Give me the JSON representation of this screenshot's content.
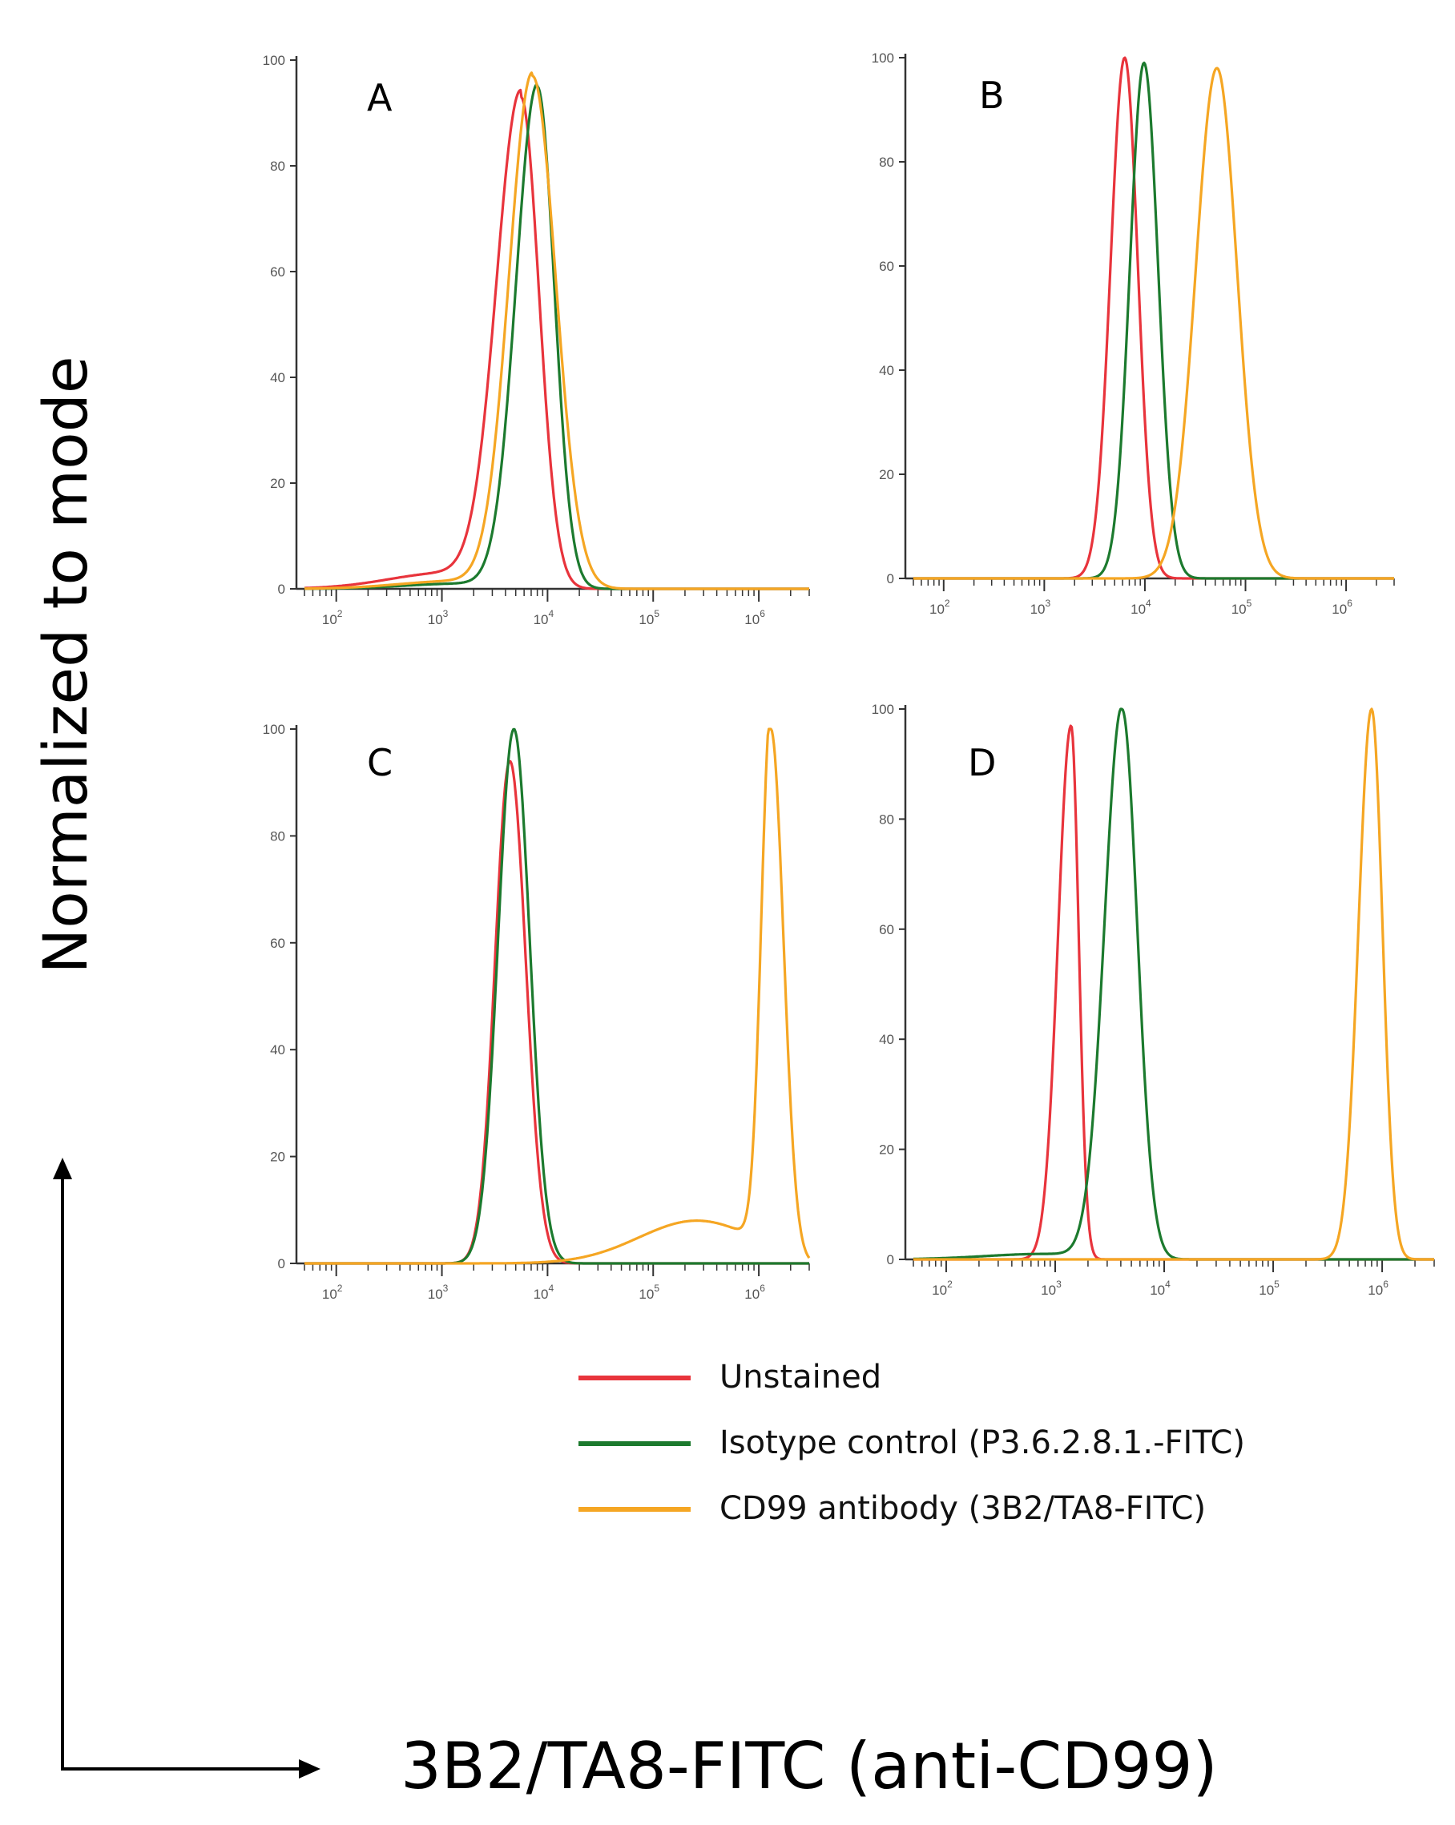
{
  "chart_data": [
    {
      "type": "line",
      "panel": "A",
      "xscale": "log",
      "xlim": [
        50,
        3000000
      ],
      "ylim": [
        0,
        100
      ],
      "yticks": [
        "0",
        "20",
        "40",
        "60",
        "80",
        "100"
      ],
      "xticks": [
        {
          "base": "10",
          "exp": "2"
        },
        {
          "base": "10",
          "exp": "3"
        },
        {
          "base": "10",
          "exp": "4"
        },
        {
          "base": "10",
          "exp": "5"
        },
        {
          "base": "10",
          "exp": "6"
        }
      ],
      "series": [
        {
          "name": "Unstained",
          "peak_x": 5600,
          "peak_y": 93,
          "sigma_left": 0.23,
          "sigma_right": 0.17,
          "shoulder": 3,
          "color": "#e8343c"
        },
        {
          "name": "Isotype control (P3.6.2.8.1.-FITC)",
          "peak_x": 8000,
          "peak_y": 95,
          "sigma_left": 0.2,
          "sigma_right": 0.16,
          "shoulder": 1,
          "color": "#1c7a2e"
        },
        {
          "name": "CD99 antibody (3B2/TA8-FITC)",
          "peak_x": 7200,
          "peak_y": 97,
          "sigma_left": 0.22,
          "sigma_right": 0.22,
          "shoulder": 1.5,
          "color": "#f5a623"
        }
      ]
    },
    {
      "type": "line",
      "panel": "B",
      "xscale": "log",
      "xlim": [
        50,
        3000000
      ],
      "ylim": [
        0,
        100
      ],
      "yticks": [
        "0",
        "20",
        "40",
        "60",
        "80",
        "100"
      ],
      "xticks": [
        {
          "base": "10",
          "exp": "2"
        },
        {
          "base": "10",
          "exp": "3"
        },
        {
          "base": "10",
          "exp": "4"
        },
        {
          "base": "10",
          "exp": "5"
        },
        {
          "base": "10",
          "exp": "6"
        }
      ],
      "series": [
        {
          "name": "Unstained",
          "peak_x": 6300,
          "peak_y": 100,
          "sigma_left": 0.14,
          "sigma_right": 0.13,
          "shoulder": 0,
          "color": "#e8343c"
        },
        {
          "name": "Isotype control (P3.6.2.8.1.-FITC)",
          "peak_x": 9800,
          "peak_y": 99,
          "sigma_left": 0.14,
          "sigma_right": 0.14,
          "shoulder": 0,
          "color": "#1c7a2e"
        },
        {
          "name": "CD99 antibody (3B2/TA8-FITC)",
          "peak_x": 52000,
          "peak_y": 98,
          "sigma_left": 0.21,
          "sigma_right": 0.2,
          "shoulder": 0,
          "color": "#f5a623"
        }
      ]
    },
    {
      "type": "line",
      "panel": "C",
      "xscale": "log",
      "xlim": [
        50,
        3000000
      ],
      "ylim": [
        0,
        100
      ],
      "yticks": [
        "0",
        "20",
        "40",
        "60",
        "80",
        "100"
      ],
      "xticks": [
        {
          "base": "10",
          "exp": "2"
        },
        {
          "base": "10",
          "exp": "3"
        },
        {
          "base": "10",
          "exp": "4"
        },
        {
          "base": "10",
          "exp": "5"
        },
        {
          "base": "10",
          "exp": "6"
        }
      ],
      "series": [
        {
          "name": "Unstained",
          "peak_x": 4400,
          "peak_y": 94,
          "sigma_left": 0.14,
          "sigma_right": 0.15,
          "shoulder": 0,
          "color": "#e8343c"
        },
        {
          "name": "Isotype control (P3.6.2.8.1.-FITC)",
          "peak_x": 4800,
          "peak_y": 100,
          "sigma_left": 0.15,
          "sigma_right": 0.15,
          "shoulder": 0,
          "color": "#1c7a2e"
        },
        {
          "name": "CD99 antibody (3B2/TA8-FITC)",
          "peak_x": 1300000,
          "peak_y": 100,
          "sigma_left": 0.09,
          "sigma_right": 0.12,
          "shoulder": 8,
          "color": "#f5a623"
        }
      ]
    },
    {
      "type": "line",
      "panel": "D",
      "xscale": "log",
      "xlim": [
        50,
        3000000
      ],
      "ylim": [
        0,
        100
      ],
      "yticks": [
        "0",
        "20",
        "40",
        "60",
        "80",
        "100"
      ],
      "xticks": [
        {
          "base": "10",
          "exp": "2"
        },
        {
          "base": "10",
          "exp": "3"
        },
        {
          "base": "10",
          "exp": "4"
        },
        {
          "base": "10",
          "exp": "5"
        },
        {
          "base": "10",
          "exp": "6"
        }
      ],
      "series": [
        {
          "name": "Unstained",
          "peak_x": 1400,
          "peak_y": 97,
          "sigma_left": 0.12,
          "sigma_right": 0.07,
          "shoulder": 0,
          "color": "#e8343c"
        },
        {
          "name": "Isotype control (P3.6.2.8.1.-FITC)",
          "peak_x": 4100,
          "peak_y": 100,
          "sigma_left": 0.16,
          "sigma_right": 0.14,
          "shoulder": 1,
          "color": "#1c7a2e"
        },
        {
          "name": "CD99 antibody (3B2/TA8-FITC)",
          "peak_x": 800000,
          "peak_y": 100,
          "sigma_left": 0.12,
          "sigma_right": 0.1,
          "shoulder": 0,
          "color": "#f5a623"
        }
      ]
    }
  ],
  "ylabel": "Normalized to mode",
  "xlabel": "3B2/TA8-FITC (anti-CD99)",
  "legend": [
    {
      "label": "Unstained",
      "color": "#e8343c"
    },
    {
      "label": "Isotype control (P3.6.2.8.1.-FITC)",
      "color": "#1c7a2e"
    },
    {
      "label": "CD99 antibody (3B2/TA8-FITC)",
      "color": "#f5a623"
    }
  ]
}
